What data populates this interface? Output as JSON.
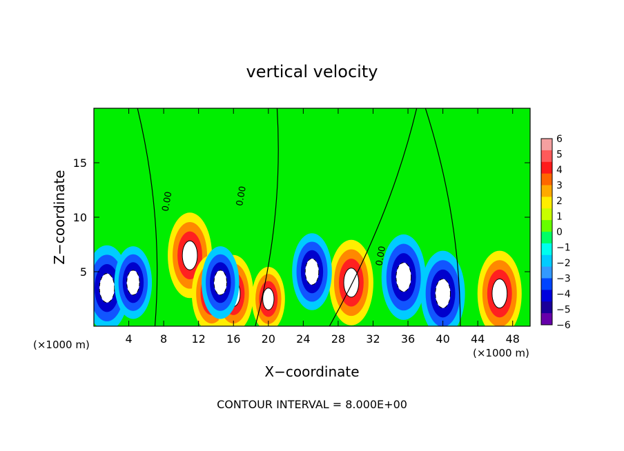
{
  "chart_data": {
    "type": "heatmap",
    "title": "vertical velocity",
    "xlabel": "X−coordinate",
    "ylabel": "Z−coordinate",
    "x_unit_left": "(×1000 m)",
    "x_unit_right": "(×1000 m)",
    "footer": "CONTOUR INTERVAL = 8.000E+00",
    "xlim": [
      0,
      50
    ],
    "ylim": [
      0,
      20
    ],
    "x_ticks": [
      4,
      8,
      12,
      16,
      20,
      24,
      28,
      32,
      36,
      40,
      44,
      48
    ],
    "y_ticks": [
      5,
      10,
      15
    ],
    "colorbar": {
      "ticks": [
        "6",
        "5",
        "4",
        "3",
        "2",
        "1",
        "0",
        "−1",
        "−2",
        "−3",
        "−4",
        "−5",
        "−6"
      ],
      "colors": [
        "#f5a0a0",
        "#ff5a5a",
        "#ff1a1a",
        "#ff6600",
        "#ffaa00",
        "#ffee00",
        "#c8ff00",
        "#66ff00",
        "#00ff66",
        "#00ffee",
        "#00ccff",
        "#3399ff",
        "#0044ff",
        "#0000dd",
        "#1a0099",
        "#6600aa"
      ]
    },
    "contour_labels": [
      "0.00",
      "0.00",
      "0.00"
    ],
    "updrafts": [
      {
        "x": 11.0,
        "z": 6.5,
        "strength": 1.0
      },
      {
        "x": 13.5,
        "z": 3.0,
        "strength": 0.9
      },
      {
        "x": 16.0,
        "z": 3.0,
        "strength": 0.9
      },
      {
        "x": 20.0,
        "z": 2.5,
        "strength": 0.75
      },
      {
        "x": 29.5,
        "z": 4.0,
        "strength": 1.0
      },
      {
        "x": 46.5,
        "z": 3.0,
        "strength": 1.0
      }
    ],
    "downdrafts": [
      {
        "x": 1.5,
        "z": 3.5,
        "strength": 1.0
      },
      {
        "x": 4.5,
        "z": 4.0,
        "strength": 0.85
      },
      {
        "x": 14.5,
        "z": 4.0,
        "strength": 0.85
      },
      {
        "x": 25.0,
        "z": 5.0,
        "strength": 0.9
      },
      {
        "x": 35.5,
        "z": 4.5,
        "strength": 1.0
      },
      {
        "x": 40.0,
        "z": 3.0,
        "strength": 1.0
      }
    ]
  }
}
